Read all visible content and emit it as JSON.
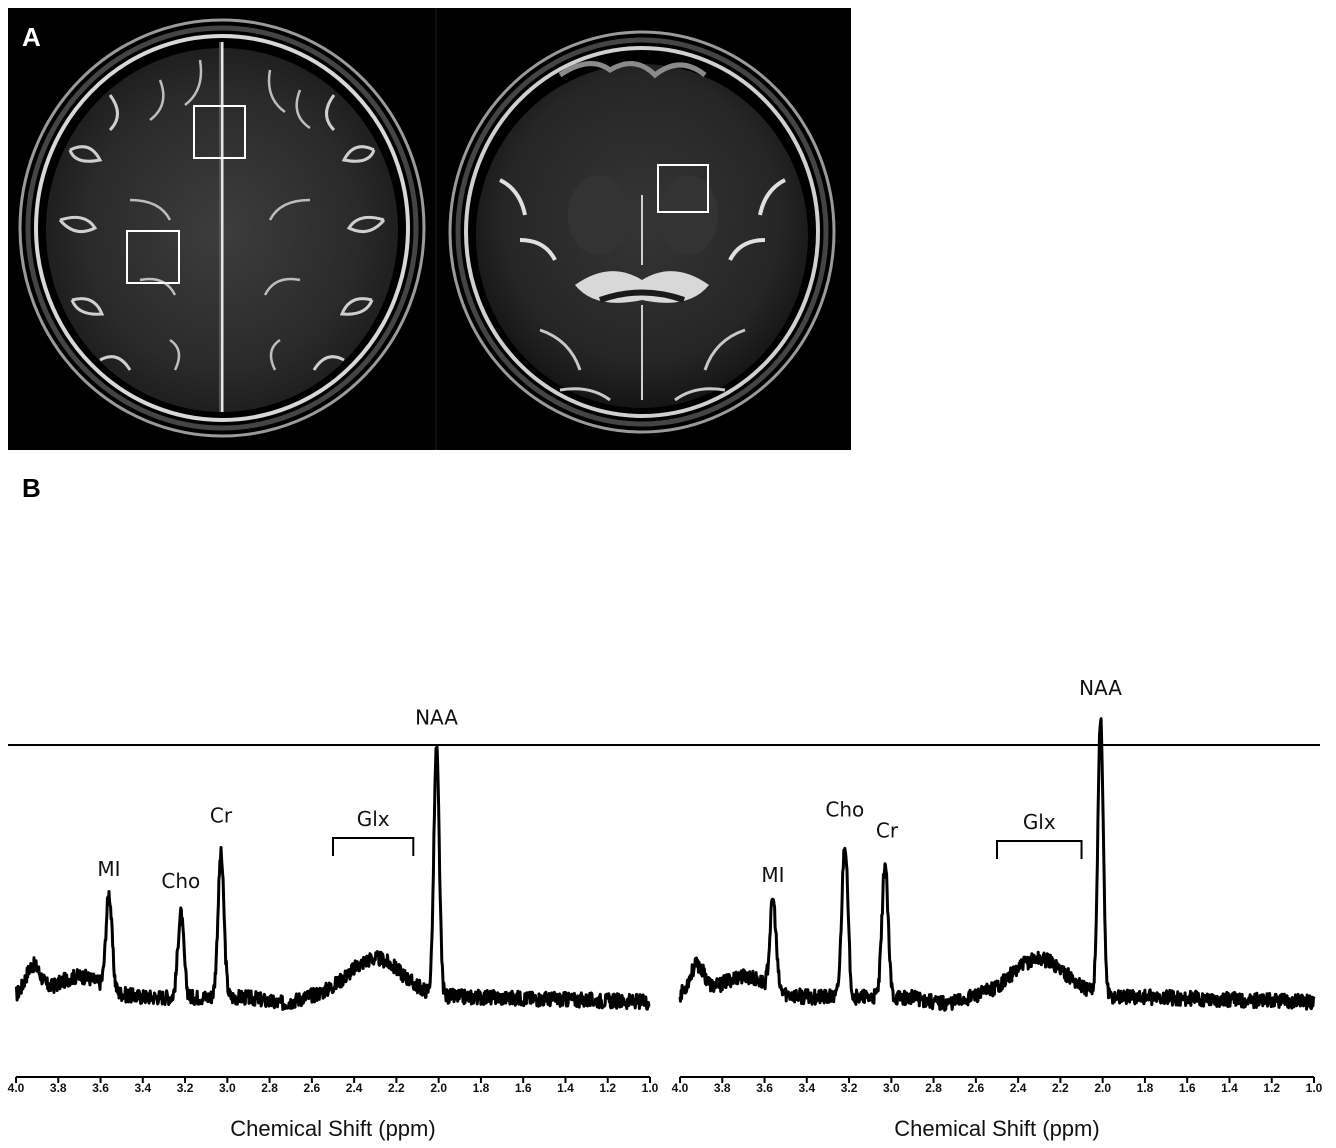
{
  "figure": {
    "panel_a_label": "A",
    "panel_b_label": "B",
    "mri": {
      "left": {
        "description_icon": "brain-axial-t2-icon"
      },
      "right": {
        "description_icon": "brain-axial-t2-icon"
      }
    }
  },
  "chart_data": [
    {
      "type": "line",
      "xlabel": "Chemical Shift (ppm)",
      "ylabel": "",
      "xlim": [
        4.0,
        1.0
      ],
      "x_reversed": true,
      "ticks": [
        "4.0",
        "3.8",
        "3.6",
        "3.4",
        "3.2",
        "3.0",
        "2.8",
        "2.6",
        "2.4",
        "2.2",
        "2.0",
        "1.8",
        "1.6",
        "1.4",
        "1.2",
        "1.0"
      ],
      "reference_line": true,
      "peaks": [
        {
          "name": "MI",
          "ppm": 3.56,
          "height": 0.32
        },
        {
          "name": "Cho",
          "ppm": 3.22,
          "height": 0.28
        },
        {
          "name": "Cr",
          "ppm": 3.03,
          "height": 0.48
        },
        {
          "name": "NAA",
          "ppm": 2.01,
          "height": 0.83
        }
      ],
      "bracket": {
        "name": "Glx",
        "from_ppm": 2.5,
        "to_ppm": 2.12
      }
    },
    {
      "type": "line",
      "xlabel": "Chemical Shift (ppm)",
      "ylabel": "",
      "xlim": [
        4.0,
        1.0
      ],
      "x_reversed": true,
      "ticks": [
        "4.0",
        "3.8",
        "3.6",
        "3.4",
        "3.2",
        "3.0",
        "2.8",
        "2.6",
        "2.4",
        "2.2",
        "2.0",
        "1.8",
        "1.6",
        "1.4",
        "1.2",
        "1.0"
      ],
      "reference_line": true,
      "peaks": [
        {
          "name": "MI",
          "ppm": 3.56,
          "height": 0.3
        },
        {
          "name": "Cho",
          "ppm": 3.22,
          "height": 0.52
        },
        {
          "name": "Cr",
          "ppm": 3.03,
          "height": 0.45
        },
        {
          "name": "NAA",
          "ppm": 2.01,
          "height": 0.93
        }
      ],
      "bracket": {
        "name": "Glx",
        "from_ppm": 2.5,
        "to_ppm": 2.1
      }
    }
  ]
}
